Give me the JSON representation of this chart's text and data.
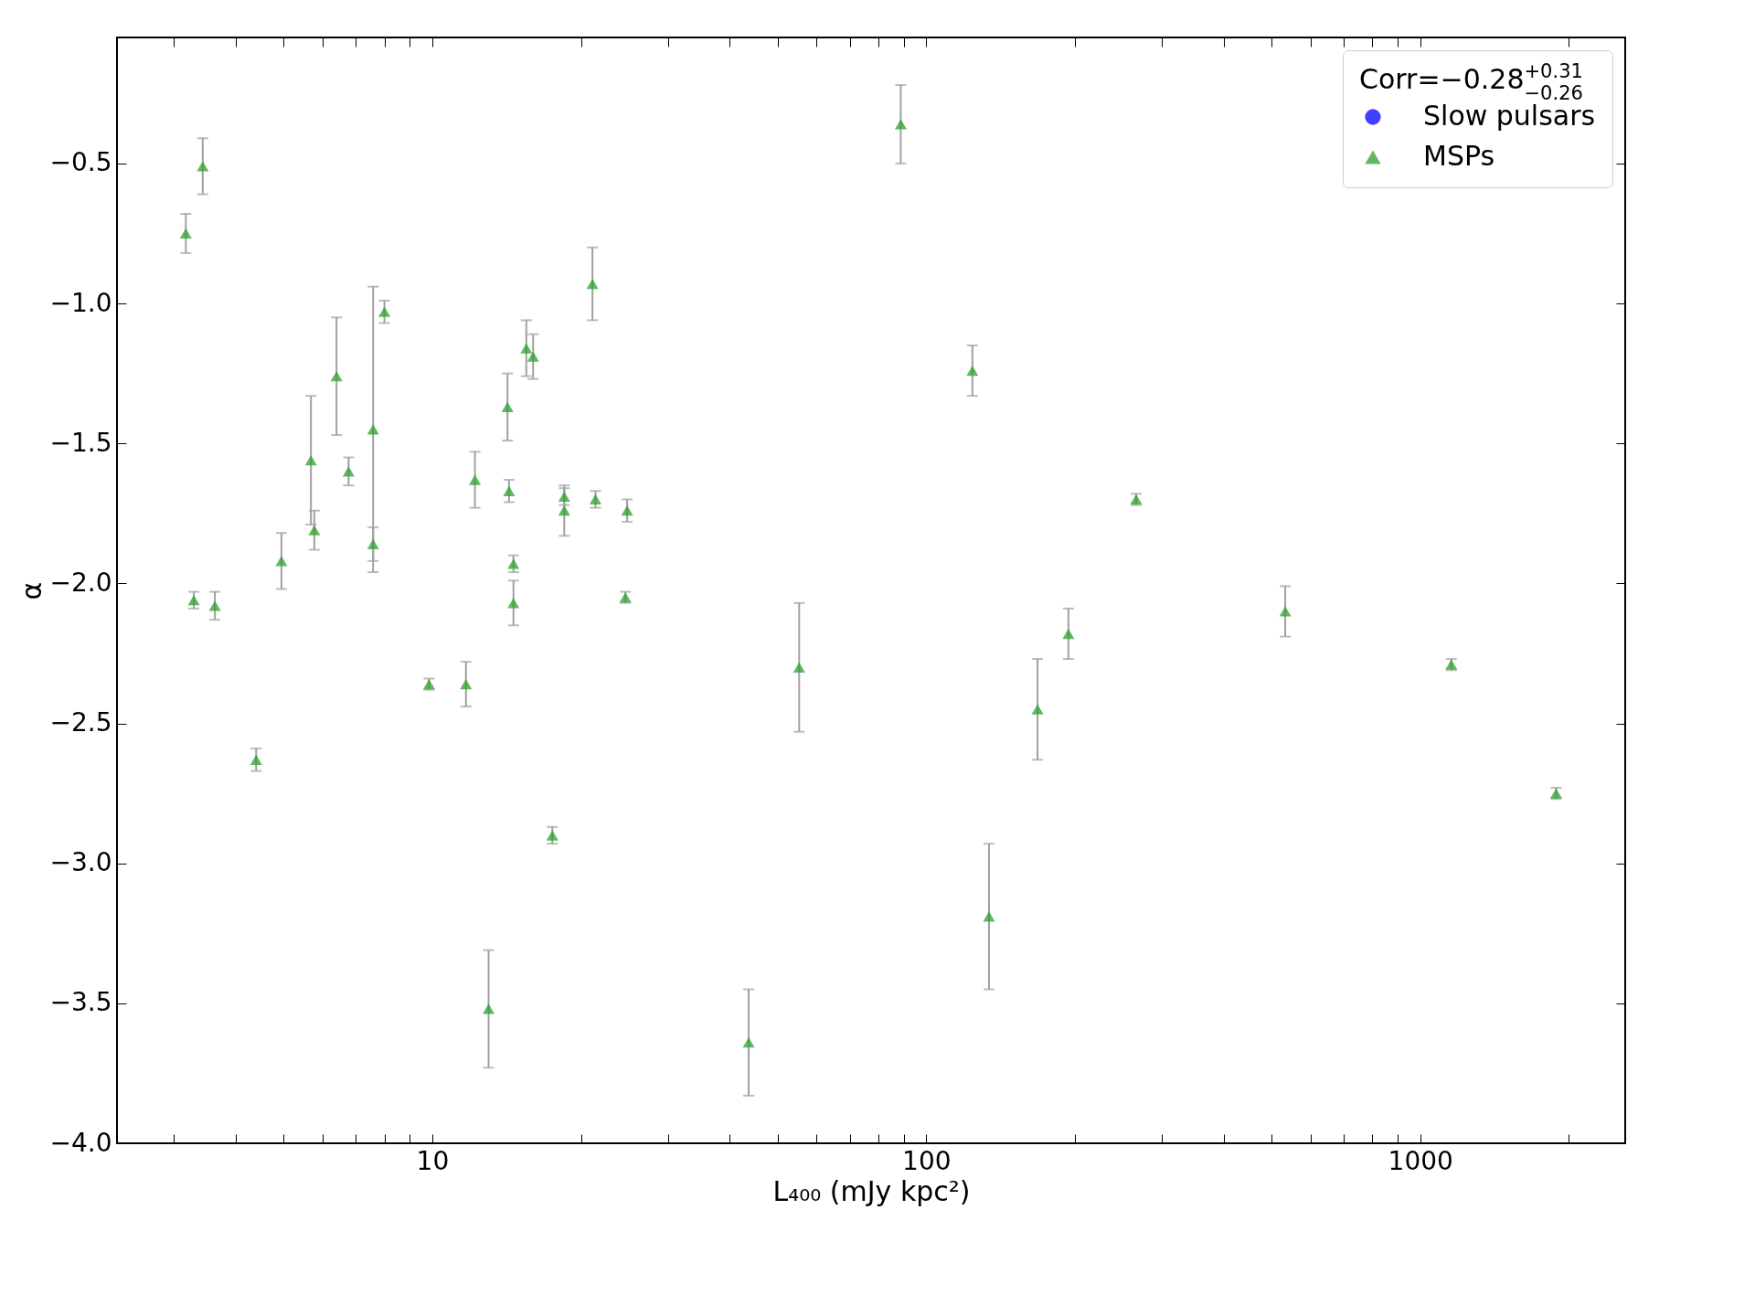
{
  "chart_data": {
    "type": "scatter",
    "xlabel": "L₄₀₀ (mJy kpc²)",
    "ylabel": "α",
    "legend_title": "Corr=−0.28$^{+0.31}$$_{−0.26}$",
    "log": "x",
    "grid": false,
    "legend": "top right",
    "xlim": [
      2.3,
      2600
    ],
    "ylim": [
      -4.0,
      -0.05
    ],
    "xticks": [
      {
        "value": 3,
        "label": null
      },
      {
        "value": 4,
        "label": null
      },
      {
        "value": 5,
        "label": null
      },
      {
        "value": 6,
        "label": null
      },
      {
        "value": 7,
        "label": null
      },
      {
        "value": 8,
        "label": null
      },
      {
        "value": 9,
        "label": null
      },
      10,
      {
        "value": 20,
        "label": null
      },
      {
        "value": 30,
        "label": null
      },
      {
        "value": 40,
        "label": null
      },
      {
        "value": 50,
        "label": null
      },
      {
        "value": 60,
        "label": null
      },
      {
        "value": 70,
        "label": null
      },
      {
        "value": 80,
        "label": null
      },
      {
        "value": 90,
        "label": null
      },
      100,
      {
        "value": 200,
        "label": null
      },
      {
        "value": 300,
        "label": null
      },
      {
        "value": 400,
        "label": null
      },
      {
        "value": 500,
        "label": null
      },
      {
        "value": 600,
        "label": null
      },
      {
        "value": 700,
        "label": null
      },
      {
        "value": 800,
        "label": null
      },
      {
        "value": 900,
        "label": null
      },
      1000,
      {
        "value": 2000,
        "label": null
      }
    ],
    "yticks": [
      {
        "value": -4.0,
        "label": "−4.0"
      },
      {
        "value": -3.5,
        "label": "−3.5"
      },
      {
        "value": -3.0,
        "label": "−3.0"
      },
      {
        "value": -2.5,
        "label": "−2.5"
      },
      {
        "value": -2.0,
        "label": "−2.0"
      },
      {
        "value": -1.5,
        "label": "−1.5"
      },
      {
        "value": -1.0,
        "label": "−1.0"
      },
      {
        "value": -0.5,
        "label": "−0.5"
      }
    ],
    "series": [
      {
        "name": "Slow pulsars",
        "color": "#0000ff",
        "marker": "circle"
      },
      {
        "name": "MSPs",
        "color": "#2ca02c",
        "marker": "triangle",
        "x": [
          3.17,
          3.43,
          3.29,
          3.63,
          4.4,
          4.95,
          5.68,
          5.77,
          6.4,
          6.77,
          7.59,
          7.59,
          8.0,
          9.85,
          11.7,
          12.2,
          13.0,
          14.2,
          14.3,
          14.6,
          14.6,
          15.5,
          16.0,
          17.5,
          18.5,
          18.5,
          21.1,
          21.4,
          24.6,
          24.8,
          43.7,
          55.3,
          88.8,
          124,
          134,
          168,
          194,
          266,
          533,
          1156,
          1884
        ],
        "values": [
          -0.75,
          -0.51,
          -2.06,
          -2.08,
          -2.63,
          -1.92,
          -1.56,
          -1.81,
          -1.26,
          -1.6,
          -1.45,
          -1.86,
          -1.03,
          -2.36,
          -2.36,
          -1.63,
          -3.52,
          -1.37,
          -1.67,
          -1.93,
          -2.07,
          -1.16,
          -1.19,
          -2.9,
          -1.69,
          -1.74,
          -0.93,
          -1.7,
          -2.05,
          -1.74,
          -3.64,
          -2.3,
          -0.36,
          -1.24,
          -3.19,
          -2.45,
          -2.18,
          -1.7,
          -2.1,
          -2.29,
          -2.75
        ],
        "errors": [
          0.07,
          0.1,
          0.03,
          0.05,
          0.04,
          0.1,
          0.23,
          0.07,
          0.21,
          0.05,
          0.51,
          0.06,
          0.04,
          0.02,
          0.08,
          0.1,
          0.21,
          0.12,
          0.04,
          0.03,
          0.08,
          0.1,
          0.08,
          0.03,
          0.03,
          0.09,
          0.13,
          0.03,
          0.02,
          0.04,
          0.19,
          0.23,
          0.14,
          0.09,
          0.26,
          0.18,
          0.09,
          0.02,
          0.09,
          0.02,
          0.02
        ]
      }
    ]
  }
}
